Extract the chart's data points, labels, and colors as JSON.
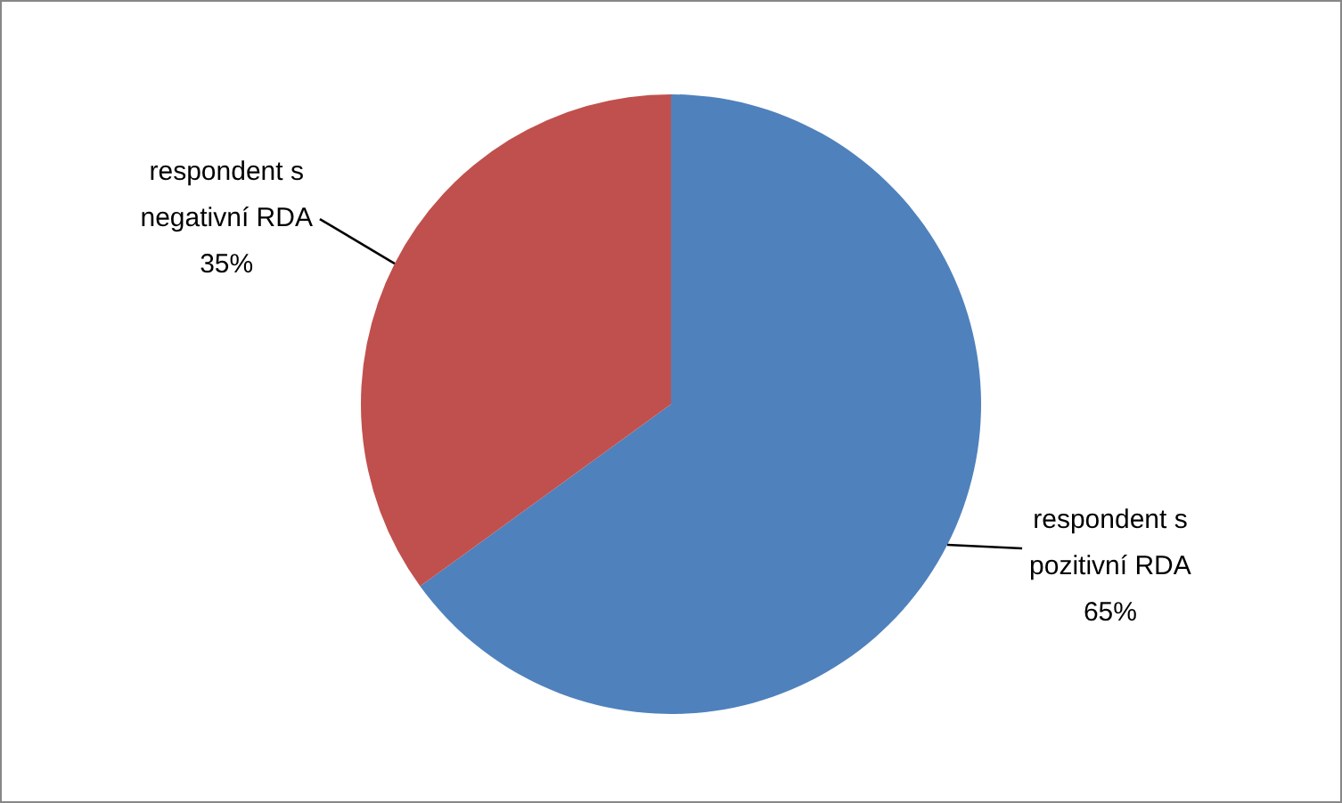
{
  "chart_data": {
    "type": "pie",
    "categories": [
      "respondent s pozitivní RDA",
      "respondent s negativní RDA"
    ],
    "values": [
      65,
      35
    ],
    "colors": [
      "#4f81bd",
      "#c0504d"
    ],
    "value_labels": [
      "65%",
      "35%"
    ],
    "legend": false
  }
}
